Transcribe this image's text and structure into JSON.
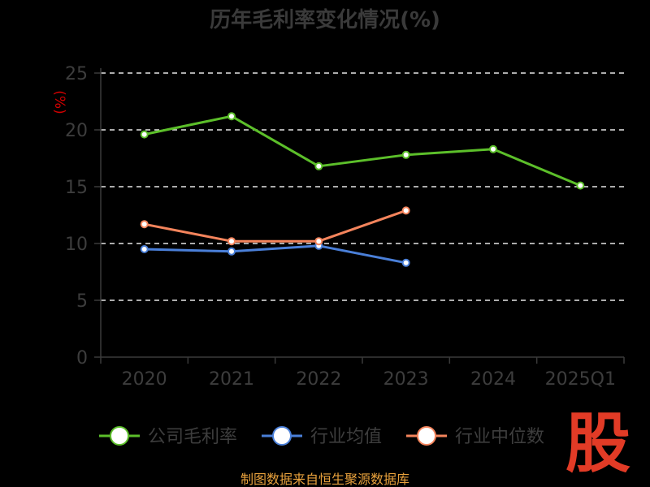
{
  "chart_data": {
    "type": "line",
    "title": "历年毛利率变化情况(%)",
    "unit": "(%)",
    "categories": [
      "2020",
      "2021",
      "2022",
      "2023",
      "2024",
      "2025Q1"
    ],
    "yticks": [
      "0",
      "5",
      "10",
      "15",
      "20",
      "25"
    ],
    "ylim": [
      0,
      25
    ],
    "grid": true,
    "legend_position": "bottom",
    "series": [
      {
        "name": "公司毛利率",
        "color": "#5cbf2a",
        "values": [
          19.6,
          21.2,
          16.8,
          17.8,
          18.3,
          15.1
        ]
      },
      {
        "name": "行业均值",
        "color": "#4a7fd8",
        "values": [
          9.5,
          9.3,
          9.8,
          8.3,
          null,
          null
        ]
      },
      {
        "name": "行业中位数",
        "color": "#f4845c",
        "values": [
          11.7,
          10.2,
          10.2,
          12.9,
          null,
          null
        ]
      }
    ]
  },
  "source": "制图数据来自恒生聚源数据库",
  "logo": "股"
}
